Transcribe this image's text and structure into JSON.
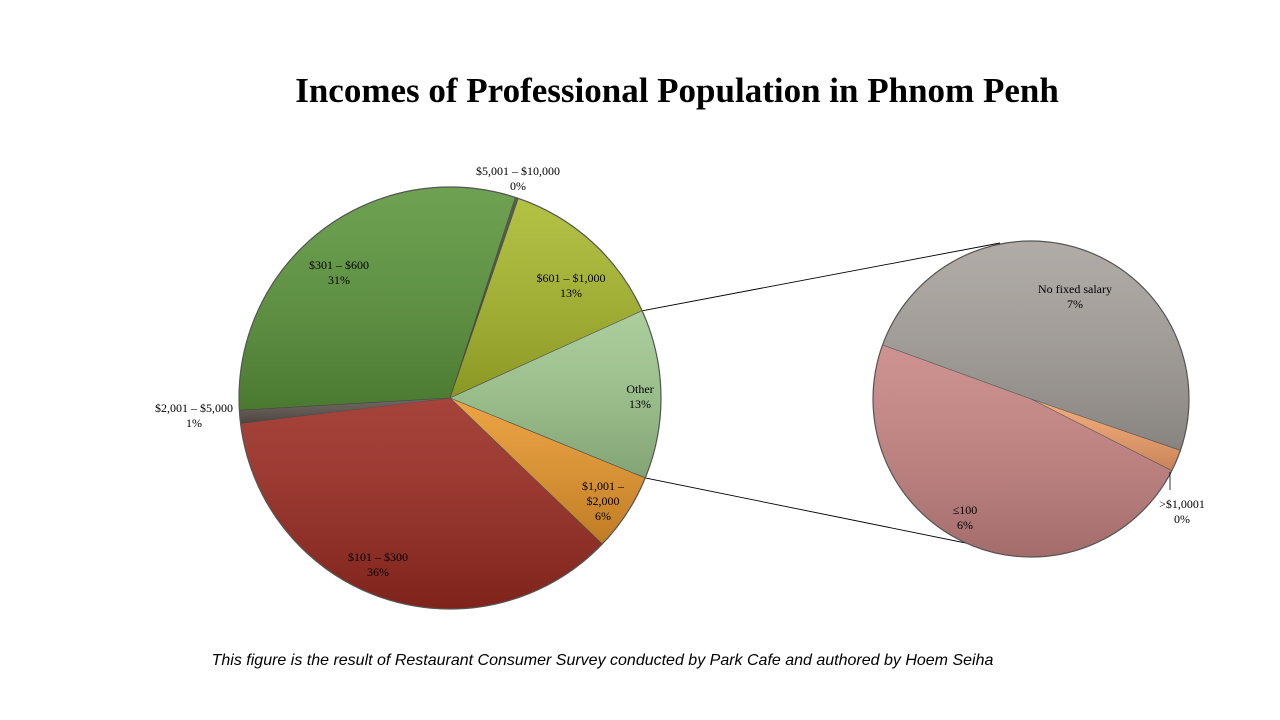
{
  "chart_data": {
    "type": "pie",
    "subtype": "pie-of-pie",
    "title": "Incomes of Professional Population in Phnom Penh",
    "main_pie": [
      {
        "label": "$5,001 – $10,000",
        "value": 0,
        "percent_label": "0%",
        "color": "#3e4a32"
      },
      {
        "label": "$601 – $1,000",
        "value": 13,
        "percent_label": "13%",
        "color": "#a8b82a"
      },
      {
        "label": "Other",
        "value": 13,
        "percent_label": "13%",
        "color": "#9fc88e"
      },
      {
        "label": "$1,001 – $2,000",
        "value": 6,
        "percent_label": "6%",
        "color": "#e8962a"
      },
      {
        "label": "$101 – $300",
        "value": 36,
        "percent_label": "36%",
        "color": "#9a2a20"
      },
      {
        "label": "$2,001 – $5,000",
        "value": 1,
        "percent_label": "1%",
        "color": "#5c524b"
      },
      {
        "label": "$301 – $600",
        "value": 31,
        "percent_label": "31%",
        "color": "#5a943a"
      }
    ],
    "secondary_pie": [
      {
        "label": "No fixed salary",
        "value": 7,
        "percent_label": "7%",
        "color": "#a5a09a"
      },
      {
        "label": ">$1,0001",
        "value": 0.3,
        "percent_label": "0%",
        "color": "#f2a06a"
      },
      {
        "label": "≤100",
        "value": 6,
        "percent_label": "6%",
        "color": "#c78482"
      }
    ],
    "secondary_explodes": "Other"
  },
  "caption": "This figure is the result of Restaurant Consumer Survey conducted by Park Cafe and authored by Hoem Seiha"
}
